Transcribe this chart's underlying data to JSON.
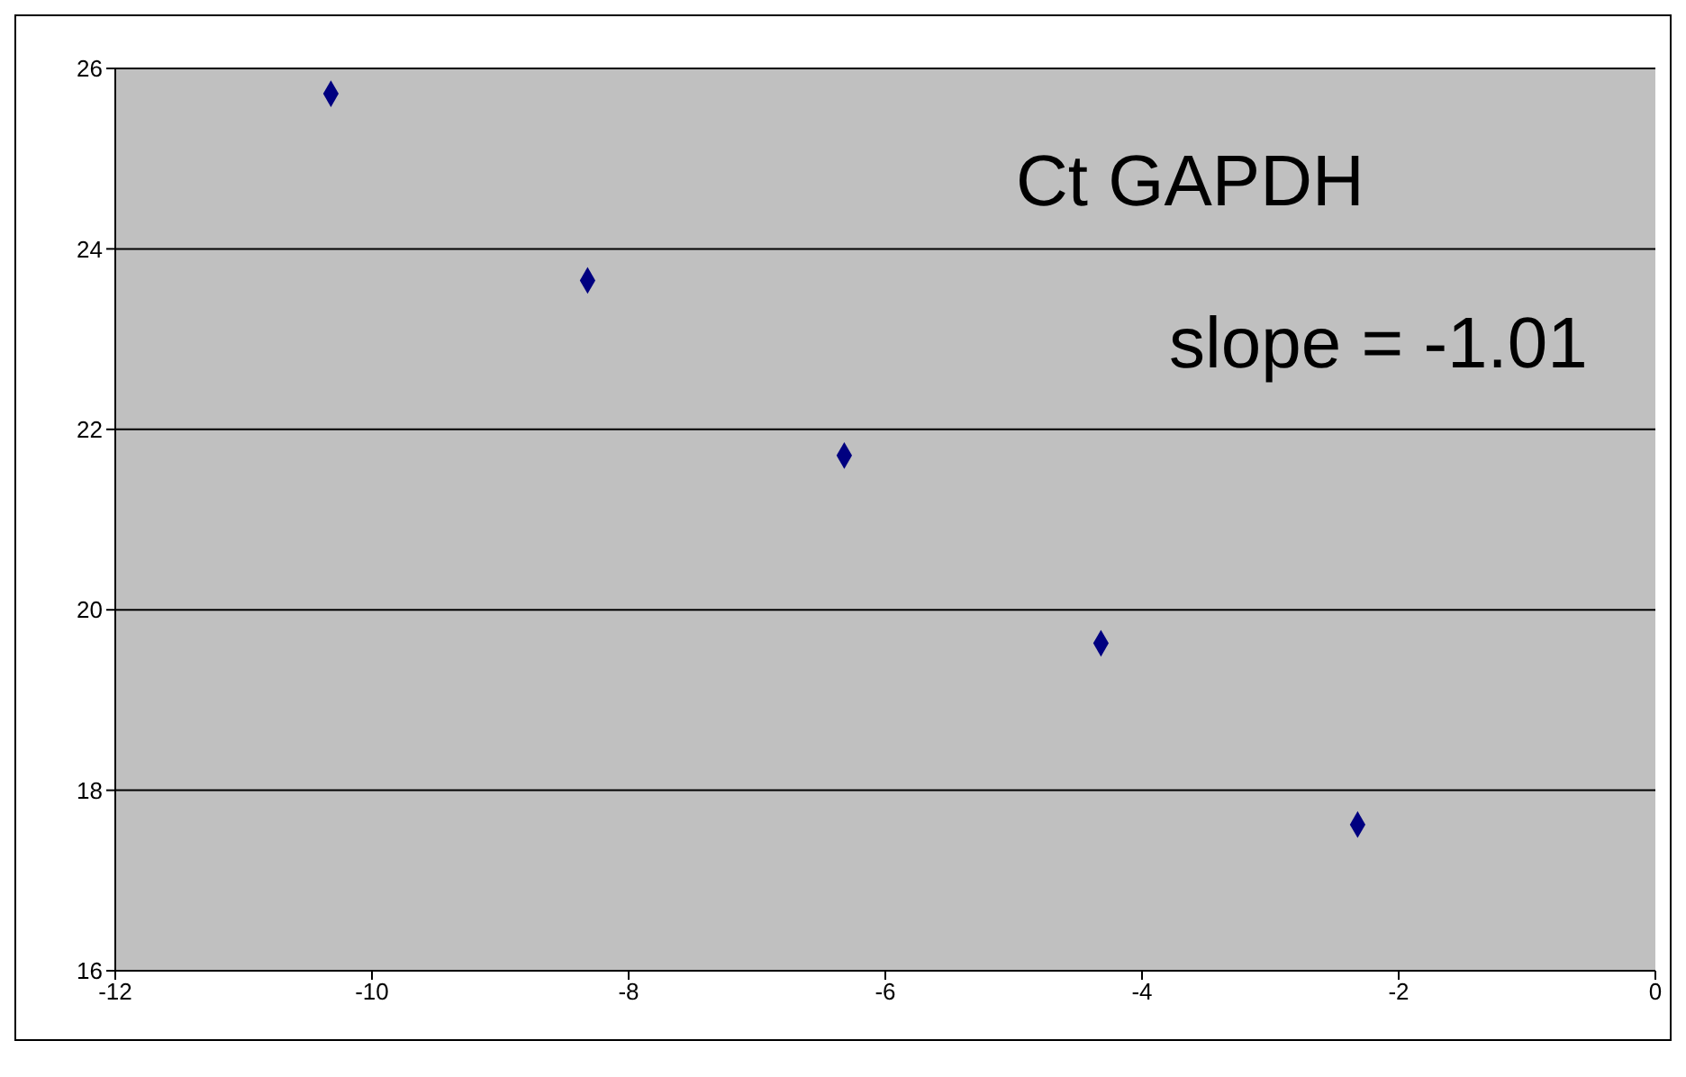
{
  "chart_data": {
    "type": "scatter",
    "x": [
      -10.32,
      -8.32,
      -6.32,
      -4.32,
      -2.32
    ],
    "series": [
      {
        "color": "#000080",
        "values": [
          25.72,
          23.65,
          21.71,
          19.63,
          17.62
        ]
      }
    ],
    "xlim": [
      -12,
      0
    ],
    "xticks": [
      -12,
      -10,
      -8,
      -6,
      -4,
      -2,
      0
    ],
    "ylim": [
      16,
      26
    ],
    "yticks": [
      16,
      18,
      20,
      22,
      24,
      26
    ],
    "grid": "y",
    "marker": "diamond",
    "annotations": [
      "Ct GAPDH",
      "slope = -1.01"
    ]
  }
}
